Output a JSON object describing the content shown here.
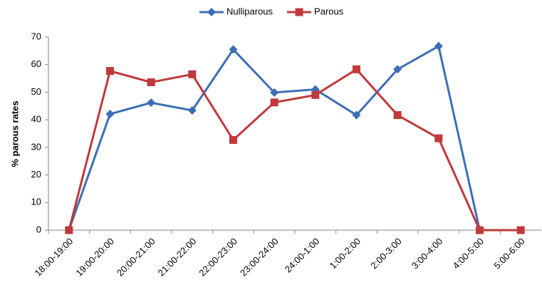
{
  "chart_data": {
    "type": "line",
    "y_label": "% parous rates",
    "categories": [
      "18:00-19:00",
      "19:00-20:00",
      "20:00-21:00",
      "21:00-22:00",
      "22:00-23:00",
      "23:00-24:00",
      "24:00-1:00",
      "1:00-2:00",
      "2:00-3:00",
      "3:00-4:00",
      "4:00-5:00",
      "5:00-6:00"
    ],
    "series": [
      {
        "name": "Nulliparous",
        "color": "#3d6eb5",
        "marker": "diamond",
        "values": [
          0,
          42.1,
          46.2,
          43.4,
          65.5,
          49.9,
          51,
          41.7,
          58.3,
          66.7,
          0,
          null
        ]
      },
      {
        "name": "Parous",
        "color": "#c0393b",
        "marker": "square",
        "values": [
          0,
          57.7,
          53.6,
          56.5,
          32.7,
          46.3,
          49,
          58.3,
          41.7,
          33.3,
          0,
          0
        ]
      }
    ],
    "ylim": [
      0,
      70
    ],
    "yticks": [
      0,
      10,
      20,
      30,
      40,
      50,
      60,
      70
    ],
    "grid": false,
    "legend": "top"
  }
}
